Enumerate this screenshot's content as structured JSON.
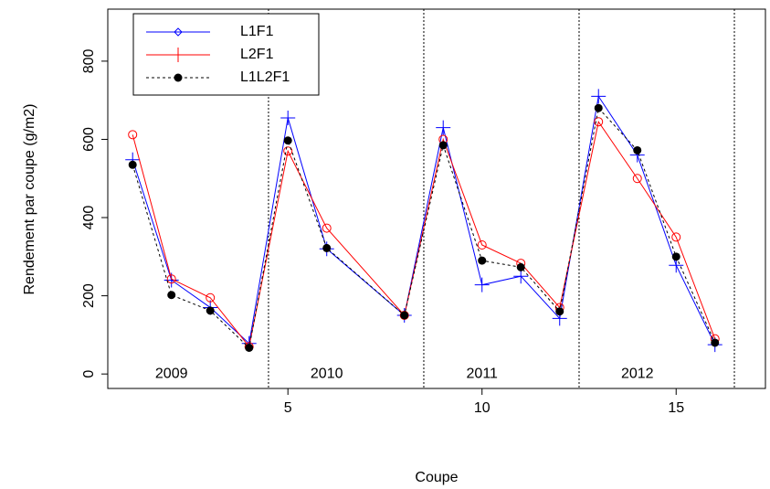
{
  "chart_data": {
    "type": "line",
    "x_label": "Coupe",
    "y_label": "Rendement par coupe (g/m2)",
    "x": [
      1,
      2,
      3,
      4,
      5,
      6,
      8,
      9,
      10,
      11,
      12,
      13,
      14,
      15,
      16
    ],
    "series": [
      {
        "name": "L1F1",
        "color": "#0000ff",
        "marker": "plus",
        "legend_marker": "diamond",
        "dash": "solid",
        "values": [
          548,
          240,
          170,
          78,
          655,
          320,
          150,
          630,
          228,
          250,
          142,
          710,
          560,
          278,
          75
        ]
      },
      {
        "name": "L2F1",
        "color": "#ff0000",
        "marker": "circle",
        "legend_marker": "bar",
        "dash": "solid",
        "values": [
          612,
          243,
          195,
          70,
          570,
          373,
          150,
          600,
          330,
          283,
          170,
          645,
          500,
          350,
          90
        ]
      },
      {
        "name": "L1L2F1",
        "color": "#000000",
        "marker": "dot",
        "legend_marker": "dot",
        "dash": "dotted",
        "values": [
          535,
          202,
          162,
          67,
          597,
          322,
          150,
          585,
          290,
          273,
          160,
          680,
          572,
          300,
          80
        ]
      }
    ],
    "vlines": [
      4.5,
      8.5,
      12.5,
      16.5
    ],
    "annotations": [
      "2009",
      "2010",
      "2011",
      "2012"
    ],
    "xlim": [
      0.36,
      17.3
    ],
    "ylim": [
      -37,
      933
    ],
    "xticks": [
      5,
      10,
      15
    ],
    "yticks": [
      0,
      200,
      400,
      600,
      800
    ],
    "legend": "top-left"
  }
}
